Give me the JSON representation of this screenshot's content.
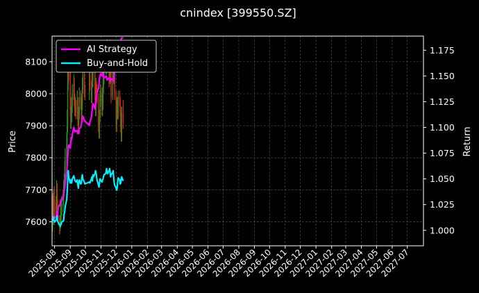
{
  "chart_data": {
    "type": "line",
    "title": "cnindex [399550.SZ]",
    "xlabel": "",
    "ylabel_left": "Price",
    "ylabel_right": "Return",
    "x_ticks": [
      "2025-08",
      "2025-09",
      "2025-10",
      "2025-11",
      "2025-12",
      "2026-01",
      "2026-02",
      "2026-03",
      "2026-04",
      "2026-05",
      "2026-06",
      "2026-07",
      "2026-08",
      "2026-09",
      "2026-10",
      "2026-11",
      "2026-12",
      "2027-01",
      "2027-02",
      "2027-03",
      "2027-04",
      "2027-05",
      "2027-06",
      "2027-07"
    ],
    "xlim": [
      "2025-07-27",
      "2027-08-02"
    ],
    "y_left_ticks": [
      7600,
      7700,
      7800,
      7900,
      8000,
      8100
    ],
    "y_left_lim": [
      7525,
      8180
    ],
    "y_right_ticks": [
      "1.000",
      "1.025",
      "1.050",
      "1.075",
      "1.100",
      "1.125",
      "1.150",
      "1.175"
    ],
    "y_right_lim": [
      0.985,
      1.1887
    ],
    "grid": true,
    "legend_position": "top-left",
    "colors": {
      "background": "#000000",
      "grid": "#555555",
      "up": "#2e8b22",
      "down": "#d42a10",
      "ai": "#ff00ff",
      "bh": "#00f0ff"
    },
    "legend": [
      "AI Strategy",
      "Buy-and-Hold"
    ],
    "series": [
      {
        "name": "AI Strategy",
        "axis": "right",
        "x": [
          "2025-07-28",
          "2025-07-29",
          "2025-07-30",
          "2025-07-31",
          "2025-08-01",
          "2025-08-04",
          "2025-08-05",
          "2025-08-06",
          "2025-08-07",
          "2025-08-08",
          "2025-08-11",
          "2025-08-12",
          "2025-08-13",
          "2025-08-14",
          "2025-08-15",
          "2025-08-18",
          "2025-08-19",
          "2025-08-20",
          "2025-08-21",
          "2025-08-22",
          "2025-08-25",
          "2025-08-26",
          "2025-08-27",
          "2025-08-28",
          "2025-08-29",
          "2025-09-01",
          "2025-09-02",
          "2025-09-03",
          "2025-09-04",
          "2025-09-05",
          "2025-09-08",
          "2025-09-09",
          "2025-09-10",
          "2025-09-11",
          "2025-09-12",
          "2025-09-15",
          "2025-09-16",
          "2025-09-17",
          "2025-09-18",
          "2025-09-19",
          "2025-09-22",
          "2025-09-23",
          "2025-09-24",
          "2025-09-25",
          "2025-09-26",
          "2025-09-29",
          "2025-09-30",
          "2025-10-09",
          "2025-10-10",
          "2025-10-13",
          "2025-10-14",
          "2025-10-15",
          "2025-10-16",
          "2025-10-17",
          "2025-10-20",
          "2025-10-21",
          "2025-10-22",
          "2025-10-23",
          "2025-10-24",
          "2025-10-27",
          "2025-10-28",
          "2025-10-29",
          "2025-10-30",
          "2025-10-31",
          "2025-11-03",
          "2025-11-04",
          "2025-11-05",
          "2025-11-06",
          "2025-11-07",
          "2025-11-10",
          "2025-11-11",
          "2025-11-12",
          "2025-11-13",
          "2025-11-14",
          "2025-11-17",
          "2025-11-18",
          "2025-11-19",
          "2025-11-20",
          "2025-11-21",
          "2025-11-24",
          "2025-11-25",
          "2025-11-26",
          "2025-11-27",
          "2025-11-28",
          "2025-12-01",
          "2025-12-02",
          "2025-12-03",
          "2025-12-04",
          "2025-12-05",
          "2025-12-08",
          "2025-12-09",
          "2025-12-10",
          "2025-12-11",
          "2025-12-12",
          "2025-12-15"
        ],
        "values": [
          1.011,
          1.012,
          1.01,
          1.014,
          1.013,
          1.012,
          1.016,
          1.018,
          1.015,
          1.022,
          1.025,
          1.024,
          1.028,
          1.03,
          1.029,
          1.033,
          1.035,
          1.038,
          1.041,
          1.046,
          1.056,
          1.064,
          1.071,
          1.079,
          1.083,
          1.08,
          1.085,
          1.09,
          1.088,
          1.093,
          1.1,
          1.098,
          1.096,
          1.097,
          1.096,
          1.097,
          1.094,
          1.096,
          1.094,
          1.099,
          1.1,
          1.103,
          1.106,
          1.109,
          1.111,
          1.107,
          1.106,
          1.102,
          1.105,
          1.11,
          1.115,
          1.12,
          1.123,
          1.122,
          1.118,
          1.123,
          1.127,
          1.13,
          1.133,
          1.138,
          1.142,
          1.148,
          1.15,
          1.152,
          1.15,
          1.153,
          1.155,
          1.149,
          1.148,
          1.149,
          1.15,
          1.149,
          1.146,
          1.147,
          1.148,
          1.146,
          1.145,
          1.146,
          1.147,
          1.146,
          1.145,
          1.147,
          1.149,
          1.155,
          1.158,
          1.162,
          1.166,
          1.17,
          1.173,
          1.176,
          1.18,
          1.182,
          1.186,
          1.187,
          1.187
        ]
      },
      {
        "name": "Buy-and-Hold",
        "axis": "right",
        "x": [
          "2025-07-28",
          "2025-07-29",
          "2025-07-30",
          "2025-07-31",
          "2025-08-01",
          "2025-08-04",
          "2025-08-05",
          "2025-08-06",
          "2025-08-07",
          "2025-08-08",
          "2025-08-11",
          "2025-08-12",
          "2025-08-13",
          "2025-08-14",
          "2025-08-15",
          "2025-08-18",
          "2025-08-19",
          "2025-08-20",
          "2025-08-21",
          "2025-08-22",
          "2025-08-25",
          "2025-08-26",
          "2025-08-27",
          "2025-08-28",
          "2025-08-29",
          "2025-09-01",
          "2025-09-02",
          "2025-09-03",
          "2025-09-04",
          "2025-09-05",
          "2025-09-08",
          "2025-09-09",
          "2025-09-10",
          "2025-09-11",
          "2025-09-12",
          "2025-09-15",
          "2025-09-16",
          "2025-09-17",
          "2025-09-18",
          "2025-09-19",
          "2025-09-22",
          "2025-09-23",
          "2025-09-24",
          "2025-09-25",
          "2025-09-26",
          "2025-09-29",
          "2025-09-30",
          "2025-10-09",
          "2025-10-10",
          "2025-10-13",
          "2025-10-14",
          "2025-10-15",
          "2025-10-16",
          "2025-10-17",
          "2025-10-20",
          "2025-10-21",
          "2025-10-22",
          "2025-10-23",
          "2025-10-24",
          "2025-10-27",
          "2025-10-28",
          "2025-10-29",
          "2025-10-30",
          "2025-10-31",
          "2025-11-03",
          "2025-11-04",
          "2025-11-05",
          "2025-11-06",
          "2025-11-07",
          "2025-11-10",
          "2025-11-11",
          "2025-11-12",
          "2025-11-13",
          "2025-11-14",
          "2025-11-17",
          "2025-11-18",
          "2025-11-19",
          "2025-11-20",
          "2025-11-21",
          "2025-11-24",
          "2025-11-25",
          "2025-11-26",
          "2025-11-27",
          "2025-11-28",
          "2025-12-01",
          "2025-12-02",
          "2025-12-03",
          "2025-12-04",
          "2025-12-05",
          "2025-12-08",
          "2025-12-09",
          "2025-12-10",
          "2025-12-11",
          "2025-12-12",
          "2025-12-15"
        ],
        "values": [
          1.011,
          1.01,
          1.013,
          1.009,
          1.008,
          1.01,
          1.011,
          1.014,
          1.009,
          1.008,
          1.005,
          1.004,
          1.005,
          1.006,
          1.008,
          1.009,
          1.01,
          1.016,
          1.018,
          1.023,
          1.03,
          1.038,
          1.048,
          1.058,
          1.052,
          1.046,
          1.049,
          1.047,
          1.046,
          1.05,
          1.053,
          1.051,
          1.049,
          1.048,
          1.047,
          1.049,
          1.044,
          1.041,
          1.046,
          1.049,
          1.045,
          1.046,
          1.051,
          1.054,
          1.05,
          1.047,
          1.045,
          1.047,
          1.046,
          1.05,
          1.052,
          1.048,
          1.054,
          1.052,
          1.055,
          1.058,
          1.056,
          1.053,
          1.049,
          1.044,
          1.042,
          1.046,
          1.05,
          1.049,
          1.047,
          1.049,
          1.05,
          1.052,
          1.054,
          1.055,
          1.057,
          1.06,
          1.057,
          1.055,
          1.058,
          1.06,
          1.057,
          1.052,
          1.054,
          1.056,
          1.058,
          1.052,
          1.047,
          1.044,
          1.041,
          1.039,
          1.041,
          1.047,
          1.051,
          1.049,
          1.045,
          1.046,
          1.049,
          1.052,
          1.048
        ]
      },
      {
        "name": "Price",
        "type": "candlestick",
        "axis": "left",
        "x": [
          "2025-07-28",
          "2025-07-29",
          "2025-07-30",
          "2025-07-31",
          "2025-08-01",
          "2025-08-04",
          "2025-08-05",
          "2025-08-06",
          "2025-08-07",
          "2025-08-08",
          "2025-08-11",
          "2025-08-12",
          "2025-08-13",
          "2025-08-14",
          "2025-08-15",
          "2025-08-18",
          "2025-08-19",
          "2025-08-20",
          "2025-08-21",
          "2025-08-22",
          "2025-08-25",
          "2025-08-26",
          "2025-08-27",
          "2025-08-28",
          "2025-08-29",
          "2025-09-01",
          "2025-09-02",
          "2025-09-03",
          "2025-09-04",
          "2025-09-05",
          "2025-09-08",
          "2025-09-09",
          "2025-09-10",
          "2025-09-11",
          "2025-09-12",
          "2025-09-15",
          "2025-09-16",
          "2025-09-17",
          "2025-09-18",
          "2025-09-19",
          "2025-09-22",
          "2025-09-23",
          "2025-09-24",
          "2025-09-25",
          "2025-09-26",
          "2025-09-29",
          "2025-09-30",
          "2025-10-09",
          "2025-10-10",
          "2025-10-13",
          "2025-10-14",
          "2025-10-15",
          "2025-10-16",
          "2025-10-17",
          "2025-10-20",
          "2025-10-21",
          "2025-10-22",
          "2025-10-23",
          "2025-10-24",
          "2025-10-27",
          "2025-10-28",
          "2025-10-29",
          "2025-10-30",
          "2025-10-31",
          "2025-11-03",
          "2025-11-04",
          "2025-11-05",
          "2025-11-06",
          "2025-11-07",
          "2025-11-10",
          "2025-11-11",
          "2025-11-12",
          "2025-11-13",
          "2025-11-14",
          "2025-11-17",
          "2025-11-18",
          "2025-11-19",
          "2025-11-20",
          "2025-11-21",
          "2025-11-24",
          "2025-11-25",
          "2025-11-26",
          "2025-11-27",
          "2025-11-28",
          "2025-12-01",
          "2025-12-02",
          "2025-12-03",
          "2025-12-04",
          "2025-12-05",
          "2025-12-08",
          "2025-12-09",
          "2025-12-10",
          "2025-12-11",
          "2025-12-12",
          "2025-12-15"
        ],
        "open": [
          7590,
          7655,
          7615,
          7680,
          7640,
          7630,
          7660,
          7700,
          7650,
          7630,
          7610,
          7585,
          7600,
          7620,
          7645,
          7655,
          7670,
          7700,
          7720,
          7760,
          7800,
          7850,
          7900,
          8030,
          8090,
          8070,
          7950,
          7910,
          7935,
          7960,
          8000,
          8030,
          7980,
          7955,
          7960,
          7940,
          7980,
          7925,
          7900,
          7935,
          7990,
          7970,
          7930,
          7975,
          8020,
          8060,
          8010,
          8000,
          8060,
          8030,
          7990,
          8060,
          8040,
          8095,
          8100,
          8000,
          7950,
          8020,
          8015,
          7990,
          7900,
          7880,
          7925,
          7980,
          8000,
          7950,
          7970,
          8025,
          8050,
          8085,
          8110,
          8080,
          8110,
          8150,
          8080,
          8040,
          8130,
          8150,
          8050,
          7990,
          8050,
          8080,
          8120,
          8050,
          7990,
          7900,
          7950,
          7960,
          7940,
          7990,
          7980,
          7950,
          7900,
          7870,
          7940
        ],
        "close": [
          7655,
          7615,
          7680,
          7640,
          7630,
          7660,
          7700,
          7650,
          7630,
          7610,
          7585,
          7600,
          7620,
          7645,
          7655,
          7670,
          7700,
          7720,
          7760,
          7800,
          7850,
          7900,
          8030,
          8090,
          8070,
          7950,
          7910,
          7935,
          7960,
          8000,
          8030,
          7980,
          7955,
          7960,
          7940,
          7980,
          7925,
          7900,
          7935,
          7990,
          7970,
          7930,
          7975,
          8020,
          8060,
          8010,
          8000,
          8060,
          8030,
          7990,
          8060,
          8040,
          8095,
          8100,
          8000,
          7950,
          8020,
          8015,
          7990,
          7900,
          7880,
          7925,
          7980,
          8000,
          7950,
          7970,
          8025,
          8050,
          8085,
          8110,
          8080,
          8110,
          8150,
          8080,
          8040,
          8130,
          8150,
          8050,
          7990,
          8050,
          8080,
          8120,
          8050,
          7990,
          7900,
          7950,
          7960,
          7940,
          7990,
          7980,
          7950,
          7900,
          7870,
          7940,
          7910
        ],
        "high": [
          7680,
          7690,
          7700,
          7710,
          7670,
          7680,
          7730,
          7720,
          7670,
          7650,
          7620,
          7620,
          7650,
          7670,
          7680,
          7700,
          7730,
          7750,
          7790,
          7830,
          7880,
          7950,
          8070,
          8110,
          8100,
          8080,
          7990,
          7960,
          7990,
          8030,
          8060,
          8050,
          8000,
          7990,
          7980,
          8010,
          7990,
          7940,
          7960,
          8020,
          8010,
          7990,
          8000,
          8050,
          8080,
          8070,
          8030,
          8080,
          8070,
          8040,
          8080,
          8080,
          8120,
          8130,
          8110,
          8020,
          8050,
          8040,
          8030,
          8000,
          7920,
          7950,
          8010,
          8030,
          8020,
          8000,
          8050,
          8080,
          8110,
          8140,
          8130,
          8140,
          8170,
          8160,
          8100,
          8150,
          8170,
          8160,
          8070,
          8080,
          8110,
          8140,
          8130,
          8070,
          8010,
          7980,
          7990,
          7990,
          8010,
          8010,
          7990,
          7960,
          7920,
          7960,
          7980
        ],
        "low": [
          7570,
          7600,
          7590,
          7630,
          7610,
          7610,
          7640,
          7630,
          7610,
          7590,
          7560,
          7570,
          7580,
          7600,
          7620,
          7630,
          7650,
          7680,
          7700,
          7740,
          7780,
          7830,
          7880,
          8010,
          8040,
          7930,
          7890,
          7890,
          7910,
          7940,
          7980,
          7960,
          7930,
          7930,
          7920,
          7920,
          7900,
          7880,
          7880,
          7920,
          7950,
          7910,
          7910,
          7950,
          8000,
          7990,
          7980,
          7980,
          8010,
          7970,
          7970,
          8020,
          8020,
          8070,
          7980,
          7930,
          7930,
          7990,
          7970,
          7880,
          7860,
          7860,
          7910,
          7960,
          7930,
          7930,
          7950,
          8000,
          8030,
          8070,
          8060,
          8060,
          8090,
          8070,
          8020,
          8030,
          8110,
          8030,
          7970,
          7980,
          8030,
          8060,
          8030,
          7980,
          7880,
          7880,
          7920,
          7920,
          7920,
          7960,
          7930,
          7880,
          7850,
          7850,
          7890
        ]
      }
    ]
  }
}
